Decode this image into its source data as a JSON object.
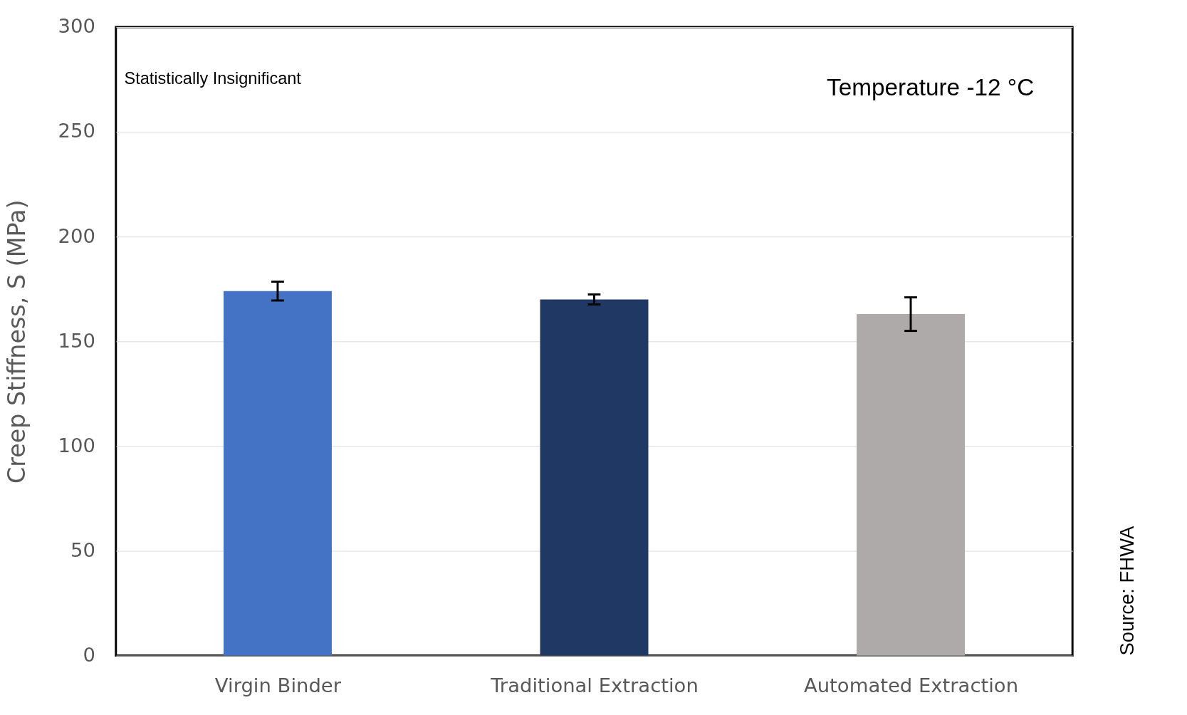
{
  "chart_data": {
    "type": "bar",
    "ylabel": "Creep Stiffness, S (MPa)",
    "categories": [
      "Virgin Binder",
      "Traditional Extraction",
      "Automated Extraction"
    ],
    "values": [
      174,
      170,
      163
    ],
    "errors": [
      4.5,
      2.4,
      8
    ],
    "colors": [
      "#4472c4",
      "#203864",
      "#aeaaaa"
    ],
    "ylim": [
      0,
      300
    ],
    "yticks": [
      0,
      50,
      100,
      150,
      200,
      250,
      300
    ],
    "grid": "y",
    "annotations": [
      "Statistically Insignificant",
      "Temperature -12 °C",
      "Source: FHWA"
    ]
  }
}
